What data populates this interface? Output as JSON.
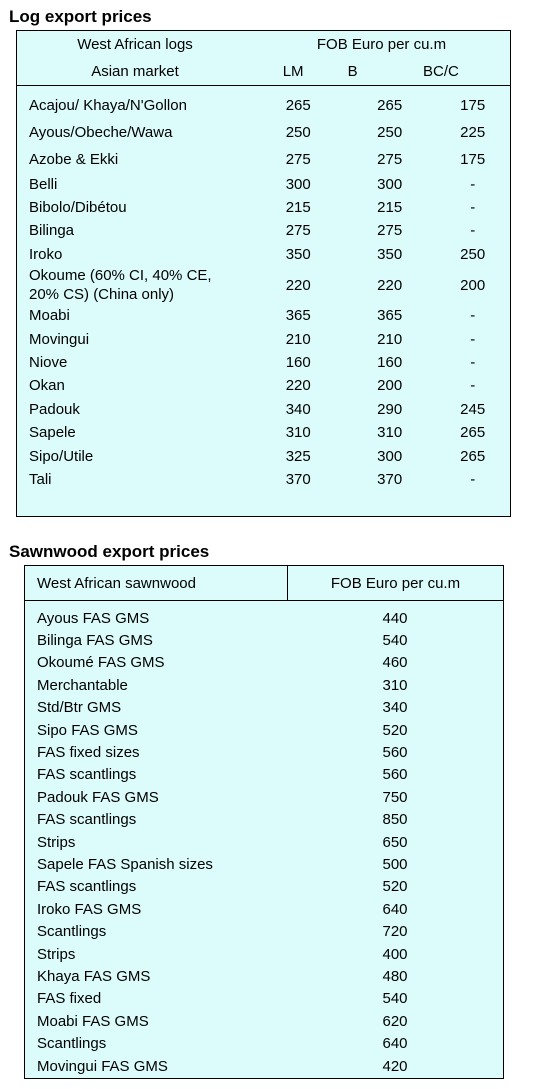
{
  "log_section": {
    "title": "Log export prices",
    "header": {
      "col1_top": "West African logs",
      "group": "FOB Euro per cu.m",
      "col1_bottom": "Asian market",
      "columns": [
        "LM",
        "B",
        "BC/C"
      ]
    },
    "rows": [
      [
        "Acajou/ Khaya/N'Gollon",
        265,
        265,
        175
      ],
      [
        "Ayous/Obeche/Wawa",
        250,
        250,
        225
      ],
      [
        "Azobe & Ekki",
        275,
        275,
        175
      ],
      [
        "Belli",
        300,
        300,
        "-"
      ],
      [
        "Bibolo/Dibétou",
        215,
        215,
        "-"
      ],
      [
        "Bilinga",
        275,
        275,
        "-"
      ],
      [
        "Iroko",
        350,
        350,
        250
      ],
      [
        "Okoume (60% CI, 40% CE, 20% CS) (China only)",
        220,
        220,
        200
      ],
      [
        "Moabi",
        365,
        365,
        "-"
      ],
      [
        "Movingui",
        210,
        210,
        "-"
      ],
      [
        "Niove",
        160,
        160,
        "-"
      ],
      [
        "Okan",
        220,
        200,
        "-"
      ],
      [
        "Padouk",
        340,
        290,
        245
      ],
      [
        "Sapele",
        310,
        310,
        265
      ],
      [
        "Sipo/Utile",
        325,
        300,
        265
      ],
      [
        "Tali",
        370,
        370,
        "-"
      ]
    ]
  },
  "sawnwood_section": {
    "title": "Sawnwood export prices",
    "header": [
      "West African sawnwood",
      "FOB Euro per cu.m"
    ],
    "rows": [
      [
        "Ayous FAS GMS",
        440
      ],
      [
        "Bilinga FAS GMS",
        540
      ],
      [
        "Okoumé FAS GMS",
        460
      ],
      [
        "Merchantable",
        310
      ],
      [
        "Std/Btr GMS",
        340
      ],
      [
        "Sipo FAS GMS",
        520
      ],
      [
        "FAS fixed sizes",
        560
      ],
      [
        "FAS scantlings",
        560
      ],
      [
        "Padouk FAS GMS",
        750
      ],
      [
        "FAS scantlings",
        850
      ],
      [
        "Strips",
        650
      ],
      [
        "Sapele FAS Spanish sizes",
        500
      ],
      [
        "FAS scantlings",
        520
      ],
      [
        "Iroko FAS GMS",
        640
      ],
      [
        "Scantlings",
        720
      ],
      [
        "Strips",
        400
      ],
      [
        "Khaya FAS GMS",
        480
      ],
      [
        "FAS fixed",
        540
      ],
      [
        "Moabi FAS GMS",
        620
      ],
      [
        "Scantlings",
        640
      ],
      [
        "Movingui FAS GMS",
        420
      ]
    ]
  }
}
